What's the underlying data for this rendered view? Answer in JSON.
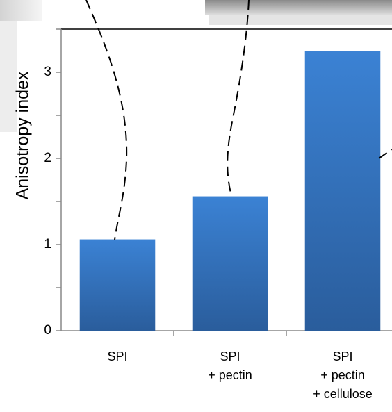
{
  "chart_data": {
    "type": "bar",
    "y_label": "Anisotropy index",
    "categories": [
      [
        "SPI"
      ],
      [
        "SPI",
        "+ pectin"
      ],
      [
        "SPI",
        "+ pectin",
        "+ cellulose"
      ]
    ],
    "values": [
      1.06,
      1.56,
      3.25
    ],
    "color": "#3778c8",
    "ylim": [
      0,
      3.5
    ],
    "yticks": [
      0,
      1,
      2,
      3
    ],
    "minor_yticks": [
      0.5,
      1.5,
      2.5,
      3.5
    ],
    "grid": false
  }
}
